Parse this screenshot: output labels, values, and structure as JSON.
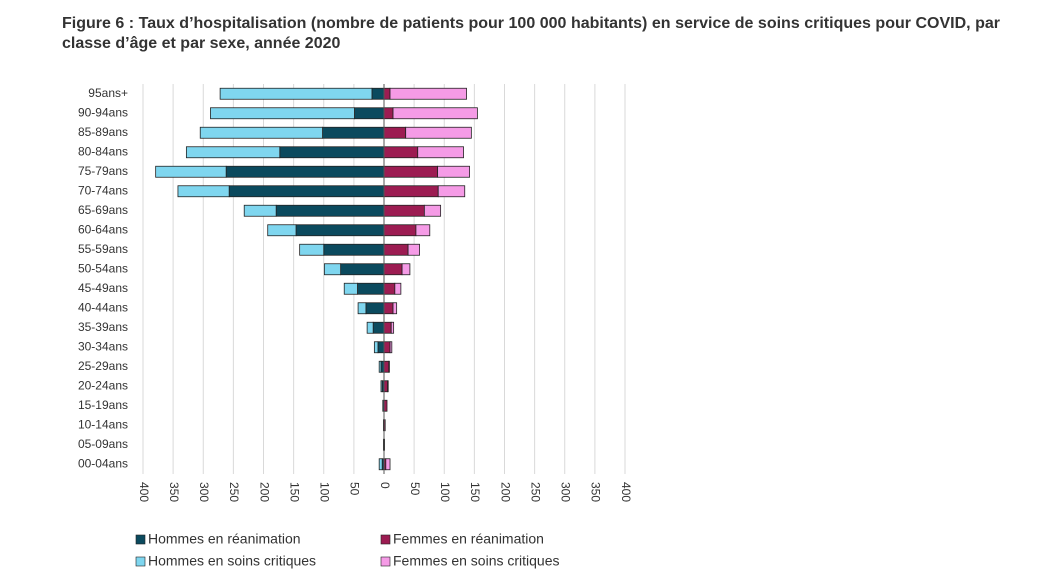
{
  "chart_data": {
    "type": "bar",
    "orientation": "horizontal",
    "stacked": true,
    "title": "Figure 6 : Taux d’hospitalisation (nombre de patients pour 100 000 habitants) en service de soins critiques pour COVID, par classe d’âge et par sexe, année 2020",
    "categories": [
      "95ans+",
      "90-94ans",
      "85-89ans",
      "80-84ans",
      "75-79ans",
      "70-74ans",
      "65-69ans",
      "60-64ans",
      "55-59ans",
      "50-54ans",
      "45-49ans",
      "40-44ans",
      "35-39ans",
      "30-34ans",
      "25-29ans",
      "20-24ans",
      "15-19ans",
      "10-14ans",
      "05-09ans",
      "00-04ans"
    ],
    "series": [
      {
        "name": "Hommes en réanimation",
        "color": "#0b4a5e",
        "values": [
          -20,
          -49,
          -102,
          -173,
          -262,
          -257,
          -179,
          -146,
          -100,
          -72,
          -44,
          -30,
          -18,
          -10,
          -5,
          -3,
          -2,
          -1,
          -1,
          -3
        ]
      },
      {
        "name": "Hommes en soins critiques",
        "color": "#7fd6ef",
        "values": [
          -252,
          -239,
          -203,
          -155,
          -117,
          -85,
          -53,
          -47,
          -40,
          -27,
          -22,
          -13,
          -10,
          -6,
          -3,
          -2,
          0,
          0,
          0,
          -5
        ]
      },
      {
        "name": "Femmes en réanimation",
        "color": "#9c1c52",
        "values": [
          10,
          15,
          36,
          56,
          89,
          90,
          67,
          53,
          40,
          30,
          18,
          15,
          12,
          10,
          8,
          6,
          5,
          2,
          1,
          3
        ]
      },
      {
        "name": "Femmes en soins critiques",
        "color": "#f59be6",
        "values": [
          127,
          140,
          109,
          76,
          53,
          44,
          27,
          23,
          19,
          13,
          10,
          6,
          4,
          3,
          1,
          1,
          0,
          0,
          0,
          7
        ]
      }
    ],
    "xlim": [
      -400,
      400
    ],
    "xticks": [
      {
        "value": -400,
        "label": "400"
      },
      {
        "value": -350,
        "label": "350"
      },
      {
        "value": -300,
        "label": "300"
      },
      {
        "value": -250,
        "label": "250"
      },
      {
        "value": -200,
        "label": "200"
      },
      {
        "value": -150,
        "label": "150"
      },
      {
        "value": -100,
        "label": "100"
      },
      {
        "value": -50,
        "label": "50"
      },
      0,
      50,
      100,
      150,
      200,
      250,
      300,
      350,
      400
    ],
    "grid": true,
    "legend": "bottom"
  }
}
